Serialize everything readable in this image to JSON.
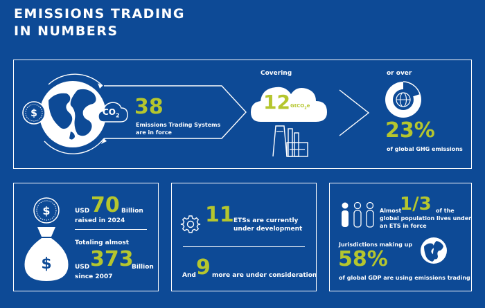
{
  "title": {
    "line1": "EMISSIONS TRADING",
    "line2": "IN NUMBERS"
  },
  "top": {
    "co2_label": "CO",
    "co2_sub": "2",
    "ets_count": "38",
    "ets_text_1": "Emissions Trading Systems",
    "ets_text_2": "are in force",
    "covering_label": "Covering",
    "covering_value": "12",
    "covering_unit": "GtCO",
    "covering_unit_sub": "2",
    "covering_unit_end": "e",
    "or_over_label": "or over",
    "ghg_value": "23%",
    "ghg_text": "of global GHG emissions"
  },
  "money": {
    "usd_label_1": "USD",
    "raised_value": "70",
    "raised_unit": "Billion",
    "raised_text": "raised in 2024",
    "totaling_label": "Totaling almost",
    "usd_label_2": "USD",
    "total_value": "373",
    "total_unit": "Billion",
    "total_text": "since 2007"
  },
  "dev": {
    "dev_value": "11",
    "dev_text_1": "ETSs are currently",
    "dev_text_2": "under development",
    "cons_prefix": "And",
    "cons_value": "9",
    "cons_text": "more are under consideration"
  },
  "population": {
    "almost_label": "Almost",
    "pop_value": "1/3",
    "pop_text_1": "of the",
    "pop_text_2": "global population lives under",
    "pop_text_3": "an ETS in force",
    "jur_text": "Jurisdictions making up",
    "gdp_value": "58%",
    "gdp_text": "of global GDP are using emissions trading"
  },
  "colors": {
    "background": "#0d4a96",
    "accent": "#b5c62e",
    "line": "#ffffff"
  },
  "icons": [
    "globe-icon",
    "dollar-coin-icon",
    "co2-cloud-icon",
    "factory-icon",
    "chevron-right-icon",
    "pie-globe-icon",
    "money-bag-icon",
    "gear-icon",
    "people-icon",
    "earth-icon"
  ]
}
